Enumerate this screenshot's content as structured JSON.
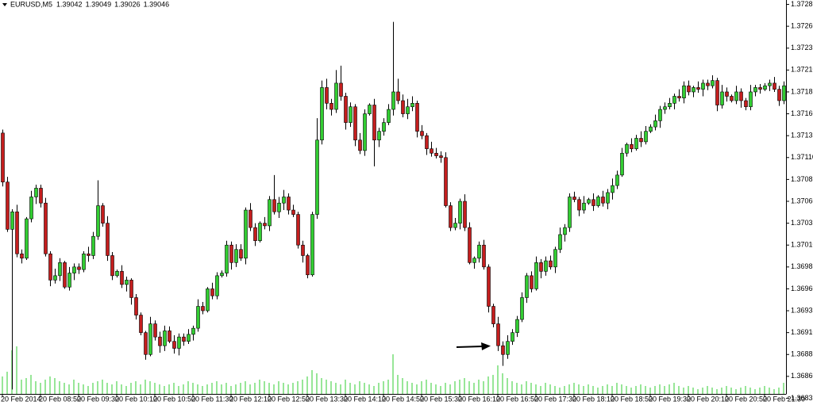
{
  "chart_data": {
    "type": "candlestick",
    "title": "EURUSD,M5",
    "header_values": [
      1.39042,
      1.39049,
      1.39026,
      1.39046
    ],
    "x": [
      "20 Feb 2014",
      null,
      null,
      null,
      null,
      null,
      null,
      null,
      "20 Feb 08:50",
      null,
      null,
      null,
      null,
      null,
      null,
      null,
      "20 Feb 09:30",
      null,
      null,
      null,
      null,
      null,
      null,
      null,
      "20 Feb 10:10",
      null,
      null,
      null,
      null,
      null,
      null,
      null,
      "20 Feb 10:50",
      null,
      null,
      null,
      null,
      null,
      null,
      null,
      "20 Feb 11:30",
      null,
      null,
      null,
      null,
      null,
      null,
      null,
      "20 Feb 12:10",
      null,
      null,
      null,
      null,
      null,
      null,
      null,
      "20 Feb 12:50",
      null,
      null,
      null,
      null,
      null,
      null,
      null,
      "20 Feb 13:30",
      null,
      null,
      null,
      null,
      null,
      null,
      null,
      "20 Feb 14:10",
      null,
      null,
      null,
      null,
      null,
      null,
      null,
      "20 Feb 14:50",
      null,
      null,
      null,
      null,
      null,
      null,
      null,
      "20 Feb 15:30",
      null,
      null,
      null,
      null,
      null,
      null,
      null,
      "20 Feb 16:10",
      null,
      null,
      null,
      null,
      null,
      null,
      null,
      "20 Feb 16:50",
      null,
      null,
      null,
      null,
      null,
      null,
      null,
      "20 Feb 17:30",
      null,
      null,
      null,
      null,
      null,
      null,
      null,
      "20 Feb 18:10",
      null,
      null,
      null,
      null,
      null,
      null,
      null,
      "20 Feb 18:50",
      null,
      null,
      null,
      null,
      null,
      null,
      null,
      "20 Feb 19:30",
      null,
      null,
      null,
      null,
      null,
      null,
      null,
      "20 Feb 20:10",
      null,
      null,
      null,
      null,
      null,
      null,
      null,
      "20 Feb 20:50",
      null,
      null,
      null,
      null,
      null,
      null,
      null,
      "20 Feb 21:30",
      null,
      null,
      null,
      null
    ],
    "ohlc": [
      [
        1.37138,
        1.37142,
        1.37077,
        1.37082
      ],
      [
        1.37082,
        1.37088,
        1.37025,
        1.37028
      ],
      [
        1.37028,
        1.37051,
        1.36845,
        1.37048
      ],
      [
        1.37048,
        1.37056,
        1.36996,
        1.37
      ],
      [
        1.37,
        1.37005,
        1.36989,
        1.36995
      ],
      [
        1.36995,
        1.37042,
        1.36993,
        1.3704
      ],
      [
        1.3704,
        1.37072,
        1.37036,
        1.37065
      ],
      [
        1.37065,
        1.37079,
        1.37057,
        1.37075
      ],
      [
        1.37075,
        1.37079,
        1.37053,
        1.37058
      ],
      [
        1.37058,
        1.37064,
        1.36997,
        1.37
      ],
      [
        1.37,
        1.37003,
        1.36963,
        1.3697
      ],
      [
        1.3697,
        1.36983,
        1.36966,
        1.36975
      ],
      [
        1.36975,
        1.36995,
        1.36969,
        1.3699
      ],
      [
        1.3699,
        1.36992,
        1.3696,
        1.36962
      ],
      [
        1.36962,
        1.36985,
        1.36958,
        1.36978
      ],
      [
        1.36978,
        1.36989,
        1.3697,
        1.36985
      ],
      [
        1.36985,
        1.36989,
        1.36977,
        1.36982
      ],
      [
        1.36982,
        1.37003,
        1.36979,
        1.37
      ],
      [
        1.37,
        1.37008,
        1.36991,
        1.36998
      ],
      [
        1.36998,
        1.37025,
        1.36994,
        1.3702
      ],
      [
        1.3702,
        1.37084,
        1.37016,
        1.37055
      ],
      [
        1.37055,
        1.37058,
        1.37031,
        1.37035
      ],
      [
        1.37035,
        1.37043,
        1.36992,
        1.36998
      ],
      [
        1.36998,
        1.37002,
        1.3697,
        1.36975
      ],
      [
        1.36975,
        1.36982,
        1.36973,
        1.3698
      ],
      [
        1.3698,
        1.36987,
        1.36961,
        1.36965
      ],
      [
        1.36965,
        1.36974,
        1.36957,
        1.3697
      ],
      [
        1.3697,
        1.36972,
        1.36942,
        1.3695
      ],
      [
        1.3695,
        1.36954,
        1.36925,
        1.3693
      ],
      [
        1.3693,
        1.36933,
        1.36907,
        1.3691
      ],
      [
        1.3691,
        1.36912,
        1.36879,
        1.36885
      ],
      [
        1.36885,
        1.36928,
        1.36883,
        1.3692
      ],
      [
        1.3692,
        1.36924,
        1.36901,
        1.36905
      ],
      [
        1.36905,
        1.36911,
        1.36887,
        1.36895
      ],
      [
        1.36895,
        1.36918,
        1.36889,
        1.36912
      ],
      [
        1.36912,
        1.36917,
        1.36898,
        1.369
      ],
      [
        1.369,
        1.36907,
        1.36886,
        1.36892
      ],
      [
        1.36892,
        1.36909,
        1.36884,
        1.36905
      ],
      [
        1.36905,
        1.36909,
        1.36895,
        1.369
      ],
      [
        1.369,
        1.36914,
        1.36897,
        1.36908
      ],
      [
        1.36908,
        1.36918,
        1.36901,
        1.36915
      ],
      [
        1.36915,
        1.36948,
        1.36911,
        1.3694
      ],
      [
        1.3694,
        1.36945,
        1.36931,
        1.36935
      ],
      [
        1.36935,
        1.36962,
        1.36933,
        1.3696
      ],
      [
        1.3696,
        1.36967,
        1.36948,
        1.36952
      ],
      [
        1.36952,
        1.36979,
        1.36948,
        1.36975
      ],
      [
        1.36975,
        1.36981,
        1.36973,
        1.36978
      ],
      [
        1.36978,
        1.37015,
        1.36974,
        1.3701
      ],
      [
        1.3701,
        1.37014,
        1.36982,
        1.3699
      ],
      [
        1.3699,
        1.37011,
        1.36985,
        1.37005
      ],
      [
        1.37005,
        1.37011,
        1.36992,
        1.36995
      ],
      [
        1.36995,
        1.37053,
        1.36988,
        1.3705
      ],
      [
        1.3705,
        1.37058,
        1.37026,
        1.3703
      ],
      [
        1.3703,
        1.37035,
        1.37009,
        1.37015
      ],
      [
        1.37015,
        1.37037,
        1.37013,
        1.37035
      ],
      [
        1.37035,
        1.37042,
        1.37028,
        1.37032
      ],
      [
        1.37032,
        1.37066,
        1.37026,
        1.37062
      ],
      [
        1.37062,
        1.3709,
        1.37045,
        1.37048
      ],
      [
        1.37048,
        1.37065,
        1.37041,
        1.37058
      ],
      [
        1.37058,
        1.37073,
        1.3705,
        1.37065
      ],
      [
        1.37065,
        1.37069,
        1.37045,
        1.3705
      ],
      [
        1.3705,
        1.37056,
        1.37042,
        1.37045
      ],
      [
        1.37045,
        1.37048,
        1.37006,
        1.3701
      ],
      [
        1.3701,
        1.37015,
        1.3699,
        1.36998
      ],
      [
        1.36998,
        1.37,
        1.36972,
        1.36976
      ],
      [
        1.36976,
        1.37048,
        1.36974,
        1.37045
      ],
      [
        1.37045,
        1.37155,
        1.3704,
        1.3713
      ],
      [
        1.3713,
        1.37198,
        1.37125,
        1.3719
      ],
      [
        1.3719,
        1.372,
        1.37165,
        1.37172
      ],
      [
        1.37172,
        1.37177,
        1.37158,
        1.37165
      ],
      [
        1.37165,
        1.3721,
        1.37161,
        1.37195
      ],
      [
        1.37195,
        1.37215,
        1.37175,
        1.3718
      ],
      [
        1.3718,
        1.37184,
        1.37142,
        1.3715
      ],
      [
        1.3715,
        1.37173,
        1.37145,
        1.37168
      ],
      [
        1.37168,
        1.37171,
        1.37123,
        1.3713
      ],
      [
        1.3713,
        1.37138,
        1.37114,
        1.37118
      ],
      [
        1.37118,
        1.37165,
        1.37112,
        1.3716
      ],
      [
        1.3716,
        1.37172,
        1.37158,
        1.3717
      ],
      [
        1.3717,
        1.37177,
        1.371,
        1.3713
      ],
      [
        1.3713,
        1.37144,
        1.37122,
        1.3714
      ],
      [
        1.3714,
        1.37155,
        1.37135,
        1.3715
      ],
      [
        1.3715,
        1.37171,
        1.37147,
        1.37165
      ],
      [
        1.37165,
        1.37265,
        1.37158,
        1.37185
      ],
      [
        1.37185,
        1.372,
        1.37171,
        1.37175
      ],
      [
        1.37175,
        1.37182,
        1.37156,
        1.3716
      ],
      [
        1.3716,
        1.37177,
        1.37154,
        1.37168
      ],
      [
        1.37168,
        1.3718,
        1.37163,
        1.37172
      ],
      [
        1.37172,
        1.37175,
        1.37133,
        1.3714
      ],
      [
        1.3714,
        1.37147,
        1.37131,
        1.37135
      ],
      [
        1.37135,
        1.37138,
        1.37113,
        1.3712
      ],
      [
        1.3712,
        1.37128,
        1.37111,
        1.37115
      ],
      [
        1.37115,
        1.37121,
        1.37109,
        1.37112
      ],
      [
        1.37112,
        1.37117,
        1.37104,
        1.3711
      ],
      [
        1.3711,
        1.37116,
        1.37053,
        1.37055
      ],
      [
        1.37055,
        1.37059,
        1.37026,
        1.3703
      ],
      [
        1.3703,
        1.37041,
        1.37027,
        1.37035
      ],
      [
        1.37035,
        1.37063,
        1.37028,
        1.3706
      ],
      [
        1.3706,
        1.37068,
        1.37026,
        1.3703
      ],
      [
        1.3703,
        1.37036,
        1.36988,
        1.3699
      ],
      [
        1.3699,
        1.36997,
        1.36983,
        1.36995
      ],
      [
        1.36995,
        1.37014,
        1.3699,
        1.3701
      ],
      [
        1.3701,
        1.37016,
        1.36982,
        1.36985
      ],
      [
        1.36985,
        1.36988,
        1.36933,
        1.3694
      ],
      [
        1.3694,
        1.36943,
        1.36916,
        1.3692
      ],
      [
        1.3692,
        1.36928,
        1.36889,
        1.36895
      ],
      [
        1.36895,
        1.369,
        1.36872,
        1.36885
      ],
      [
        1.36885,
        1.36907,
        1.3688,
        1.369
      ],
      [
        1.369,
        1.36914,
        1.36896,
        1.3691
      ],
      [
        1.3691,
        1.36929,
        1.36905,
        1.36925
      ],
      [
        1.36925,
        1.36956,
        1.36922,
        1.3695
      ],
      [
        1.3695,
        1.36978,
        1.36944,
        1.36975
      ],
      [
        1.36975,
        1.3698,
        1.36956,
        1.3696
      ],
      [
        1.3696,
        1.36997,
        1.36958,
        1.3699
      ],
      [
        1.3699,
        1.36994,
        1.36972,
        1.3698
      ],
      [
        1.3698,
        1.36997,
        1.36975,
        1.36992
      ],
      [
        1.36992,
        1.36998,
        1.36982,
        1.36985
      ],
      [
        1.36985,
        1.37008,
        1.36978,
        1.37005
      ],
      [
        1.37005,
        1.3703,
        1.37001,
        1.37022
      ],
      [
        1.37022,
        1.37034,
        1.37014,
        1.3703
      ],
      [
        1.3703,
        1.37069,
        1.37025,
        1.37065
      ],
      [
        1.37065,
        1.37071,
        1.37059,
        1.37062
      ],
      [
        1.37062,
        1.37065,
        1.37043,
        1.3705
      ],
      [
        1.3705,
        1.37066,
        1.37046,
        1.37058
      ],
      [
        1.37058,
        1.37064,
        1.37056,
        1.37062
      ],
      [
        1.37062,
        1.37069,
        1.37049,
        1.37055
      ],
      [
        1.37055,
        1.37067,
        1.37053,
        1.37065
      ],
      [
        1.37065,
        1.37072,
        1.37054,
        1.37058
      ],
      [
        1.37058,
        1.37074,
        1.37051,
        1.3707
      ],
      [
        1.3707,
        1.37086,
        1.37062,
        1.37078
      ],
      [
        1.37078,
        1.37095,
        1.37074,
        1.3709
      ],
      [
        1.3709,
        1.37121,
        1.37088,
        1.37115
      ],
      [
        1.37115,
        1.37127,
        1.37111,
        1.37125
      ],
      [
        1.37125,
        1.37132,
        1.37116,
        1.3712
      ],
      [
        1.3712,
        1.37136,
        1.37118,
        1.37132
      ],
      [
        1.37132,
        1.3714,
        1.37122,
        1.37128
      ],
      [
        1.37128,
        1.37146,
        1.37125,
        1.3714
      ],
      [
        1.3714,
        1.37148,
        1.37138,
        1.37145
      ],
      [
        1.37145,
        1.37159,
        1.37141,
        1.37152
      ],
      [
        1.37152,
        1.37169,
        1.37144,
        1.37165
      ],
      [
        1.37165,
        1.37173,
        1.3716,
        1.37168
      ],
      [
        1.37168,
        1.37178,
        1.37165,
        1.37172
      ],
      [
        1.37172,
        1.37183,
        1.37165,
        1.3718
      ],
      [
        1.3718,
        1.37188,
        1.37174,
        1.37178
      ],
      [
        1.37178,
        1.37197,
        1.37172,
        1.37192
      ],
      [
        1.37192,
        1.37198,
        1.37181,
        1.37185
      ],
      [
        1.37185,
        1.37192,
        1.37179,
        1.3719
      ],
      [
        1.3719,
        1.37197,
        1.37184,
        1.37188
      ],
      [
        1.37188,
        1.37199,
        1.3718,
        1.37195
      ],
      [
        1.37195,
        1.37199,
        1.37187,
        1.37192
      ],
      [
        1.37192,
        1.37204,
        1.37189,
        1.37198
      ],
      [
        1.37198,
        1.37201,
        1.37163,
        1.3717
      ],
      [
        1.3717,
        1.37193,
        1.37166,
        1.37185
      ],
      [
        1.37185,
        1.3719,
        1.37174,
        1.3718
      ],
      [
        1.3718,
        1.37182,
        1.37173,
        1.37175
      ],
      [
        1.37175,
        1.37192,
        1.37171,
        1.37185
      ],
      [
        1.37185,
        1.37189,
        1.37167,
        1.37175
      ],
      [
        1.37175,
        1.37178,
        1.37164,
        1.37168
      ],
      [
        1.37168,
        1.37193,
        1.37164,
        1.37185
      ],
      [
        1.37185,
        1.37193,
        1.3718,
        1.3719
      ],
      [
        1.3719,
        1.37194,
        1.37183,
        1.37188
      ],
      [
        1.37188,
        1.37195,
        1.37186,
        1.37192
      ],
      [
        1.37192,
        1.37199,
        1.37186,
        1.37195
      ],
      [
        1.37195,
        1.37202,
        1.37185,
        1.37188
      ],
      [
        1.37188,
        1.37192,
        1.37169,
        1.37175
      ],
      [
        1.37175,
        1.37197,
        1.37171,
        1.37192
      ]
    ],
    "volume": [
      22,
      28,
      55,
      60,
      18,
      20,
      24,
      16,
      14,
      18,
      22,
      20,
      16,
      14,
      12,
      18,
      14,
      12,
      10,
      14,
      16,
      18,
      14,
      12,
      16,
      12,
      10,
      14,
      16,
      12,
      18,
      16,
      14,
      12,
      10,
      12,
      14,
      10,
      12,
      16,
      14,
      12,
      10,
      12,
      14,
      16,
      12,
      14,
      10,
      12,
      14,
      16,
      12,
      14,
      18,
      16,
      14,
      12,
      16,
      14,
      12,
      14,
      16,
      18,
      22,
      30,
      26,
      20,
      18,
      16,
      14,
      12,
      18,
      14,
      12,
      16,
      14,
      12,
      10,
      14,
      16,
      18,
      50,
      24,
      20,
      16,
      14,
      12,
      16,
      18,
      14,
      12,
      10,
      14,
      12,
      16,
      18,
      20,
      16,
      14,
      18,
      16,
      22,
      24,
      36,
      26,
      20,
      16,
      14,
      12,
      16,
      14,
      12,
      10,
      14,
      12,
      10,
      8,
      10,
      12,
      14,
      12,
      10,
      12,
      10,
      8,
      10,
      12,
      10,
      14,
      12,
      10,
      8,
      10,
      12,
      10,
      8,
      10,
      12,
      10,
      12,
      14,
      10,
      8,
      10,
      8,
      6,
      8,
      10,
      8,
      6,
      8,
      10,
      8,
      6,
      8,
      10,
      8,
      6,
      8,
      10,
      8,
      6,
      8,
      14
    ],
    "ylim": [
      1.3683,
      1.3729
    ],
    "yticks": [
      1.37285,
      {
        "value": 1.3726,
        "label": "1.37260"
      },
      1.37235,
      {
        "value": 1.3721,
        "label": "1.37210"
      },
      1.37185,
      {
        "value": 1.3716,
        "label": "1.37160"
      },
      1.37135,
      {
        "value": 1.3711,
        "label": "1.37110"
      },
      1.37085,
      {
        "value": 1.3706,
        "label": "1.37060"
      },
      1.37035,
      {
        "value": 1.3701,
        "label": "1.37010"
      },
      1.36985,
      {
        "value": 1.3696,
        "label": "1.36960"
      },
      1.36935,
      {
        "value": 1.3691,
        "label": "1.36910"
      },
      1.36885,
      {
        "value": 1.3686,
        "label": "1.36860"
      },
      1.36835
    ],
    "colors": {
      "up": "#32cd32",
      "down": "#c41e1e",
      "outline": "#000000",
      "volume": "#32cd32"
    }
  }
}
